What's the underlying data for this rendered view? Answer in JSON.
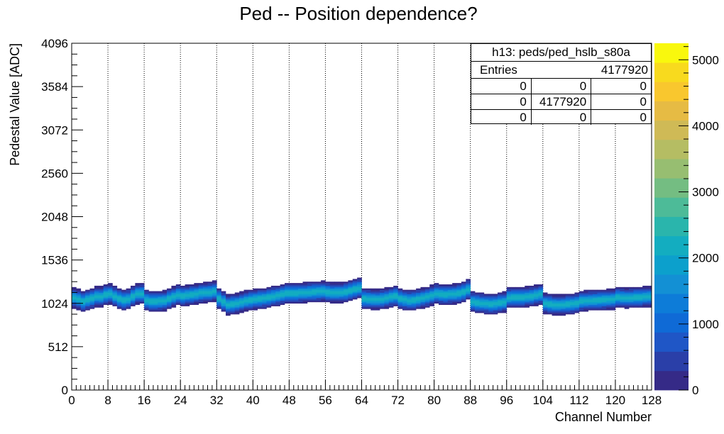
{
  "chart_data": {
    "type": "heatmap",
    "title": "Ped -- Position dependence?",
    "xlabel": "Channel Number",
    "ylabel": "Pedestal Value [ADC]",
    "xlim": [
      0,
      128
    ],
    "ylim": [
      0,
      4096
    ],
    "x_ticks": [
      "0",
      "8",
      "16",
      "24",
      "32",
      "40",
      "48",
      "56",
      "64",
      "72",
      "80",
      "88",
      "96",
      "104",
      "112",
      "120",
      "128"
    ],
    "y_ticks": [
      "0",
      "512",
      "1024",
      "1536",
      "2048",
      "2560",
      "3072",
      "3584",
      "4096"
    ],
    "z_ticks": [
      "0",
      "1000",
      "2000",
      "3000",
      "4000",
      "5000"
    ],
    "zlim": [
      0,
      5250
    ],
    "grid_x": true,
    "grid_y": false,
    "palette": [
      "#352a87",
      "#2a3fa8",
      "#1f56c6",
      "#0f6ad6",
      "#0d7cd8",
      "#1390d4",
      "#0ca0cc",
      "#13adc0",
      "#2ab5ac",
      "#4dbb98",
      "#74bd82",
      "#97be71",
      "#b5bd63",
      "#cfba56",
      "#e6bb44",
      "#f9c72e",
      "#f8da1e",
      "#f9f80d"
    ],
    "band_center_adc": [
      1090,
      1072,
      1048,
      1067,
      1083,
      1105,
      1102,
      1129,
      1137,
      1107,
      1081,
      1066,
      1075,
      1109,
      1137,
      1140,
      1060,
      1049,
      1050,
      1052,
      1058,
      1082,
      1102,
      1124,
      1112,
      1121,
      1130,
      1136,
      1148,
      1154,
      1156,
      1167,
      1082,
      1045,
      1010,
      1018,
      1026,
      1038,
      1054,
      1064,
      1073,
      1079,
      1085,
      1097,
      1108,
      1117,
      1131,
      1145,
      1146,
      1146,
      1149,
      1151,
      1156,
      1160,
      1164,
      1168,
      1157,
      1151,
      1152,
      1154,
      1162,
      1175,
      1190,
      1204,
      1081,
      1076,
      1072,
      1070,
      1076,
      1086,
      1101,
      1112,
      1082,
      1068,
      1060,
      1066,
      1077,
      1089,
      1101,
      1118,
      1139,
      1131,
      1130,
      1133,
      1136,
      1146,
      1162,
      1187,
      1043,
      1034,
      1027,
      1021,
      1015,
      1020,
      1032,
      1038,
      1092,
      1094,
      1096,
      1098,
      1103,
      1109,
      1121,
      1132,
      1025,
      1015,
      1008,
      1006,
      1009,
      1015,
      1020,
      1029,
      1051,
      1055,
      1059,
      1061,
      1063,
      1067,
      1071,
      1073,
      1094,
      1092,
      1090,
      1091,
      1094,
      1098,
      1103,
      1106
    ],
    "band_halfwidth_adc": 115,
    "peak_entries_per_bin": 2200
  },
  "stats_box": {
    "name": "h13: peds/ped_hslb_s80a",
    "entries_label": "Entries",
    "entries_value": "4177920",
    "grid": [
      [
        "0",
        "0",
        "0"
      ],
      [
        "0",
        "4177920",
        "0"
      ],
      [
        "0",
        "0",
        "0"
      ]
    ]
  }
}
